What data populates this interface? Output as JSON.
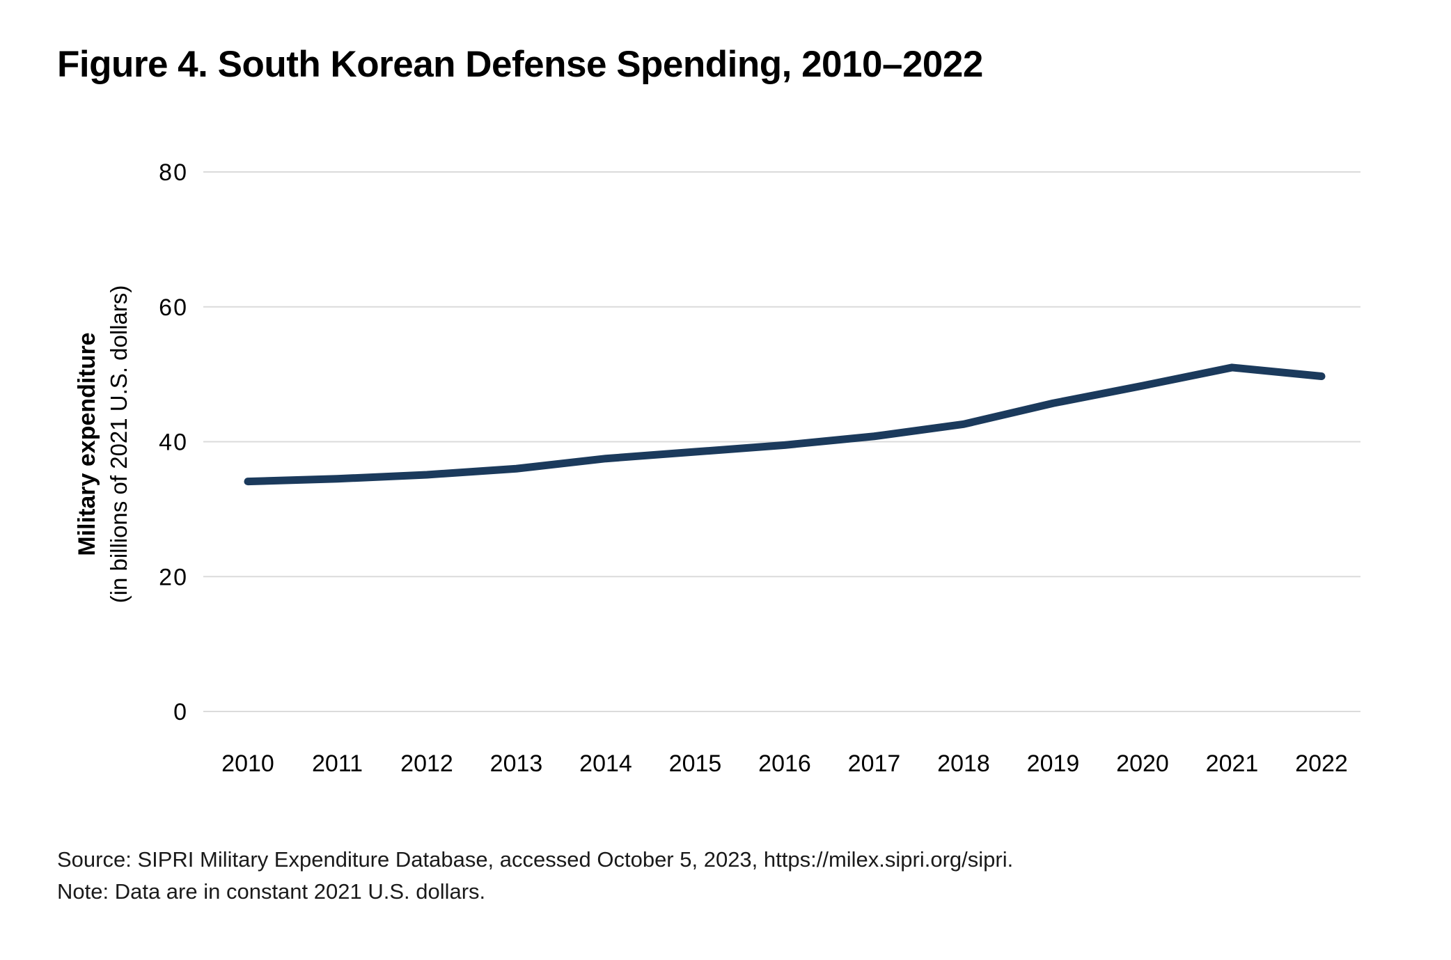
{
  "chart_data": {
    "type": "line",
    "title": "Figure 4. South Korean Defense Spending, 2010–2022",
    "x": [
      2010,
      2011,
      2012,
      2013,
      2014,
      2015,
      2016,
      2017,
      2018,
      2019,
      2020,
      2021,
      2022
    ],
    "series": [
      {
        "name": "South Korea military expenditure",
        "values": [
          34.1,
          34.5,
          35.1,
          36.0,
          37.5,
          38.5,
          39.5,
          40.8,
          42.6,
          45.7,
          48.3,
          51.0,
          49.7
        ]
      }
    ],
    "ylabel_line1": "Military expenditure",
    "ylabel_line2": "(in billions of 2021 U.S. dollars)",
    "xlabel": "",
    "yticks": [
      0,
      20,
      40,
      60,
      80
    ],
    "ylim": [
      0,
      80
    ],
    "grid": "horizontal",
    "legend": "none",
    "line_color": "#1B3A5C",
    "grid_color": "#DBDBDB",
    "tick_label_color": "#000000"
  },
  "footer": {
    "source": "Source: SIPRI Military Expenditure Database, accessed October 5, 2023, https://milex.sipri.org/sipri.",
    "note": "Note: Data are in constant 2021 U.S. dollars."
  }
}
